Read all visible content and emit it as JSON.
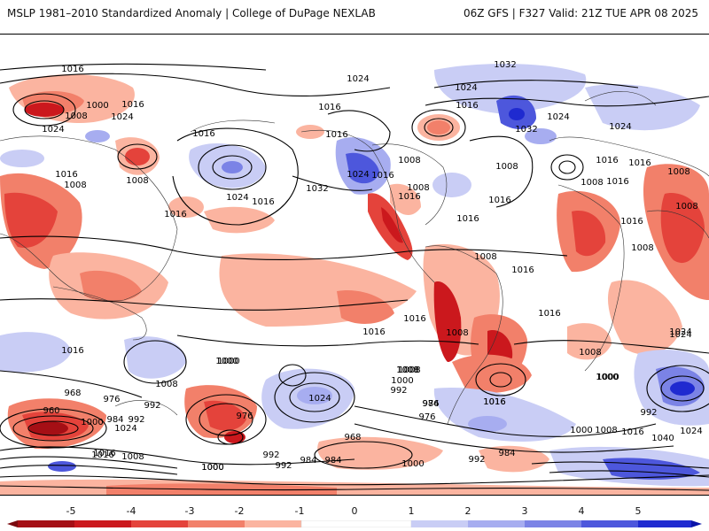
{
  "header": {
    "left_title": "MSLP 1981–2010 Standardized Anomaly | College of DuPage NEXLAB",
    "right_title": "06Z GFS | F327 Valid: 21Z TUE APR 08 2025"
  },
  "colors": {
    "neg_strong": "#a50f15",
    "neg_2": "#cb181d",
    "neg_3": "#e4433b",
    "neg_4": "#f2806a",
    "neg_weak": "#fbb4a0",
    "pos_weak": "#c9cdf5",
    "pos_2": "#a7adf0",
    "pos_3": "#7b83e6",
    "pos_4": "#4d57dc",
    "pos_strong": "#1f2ad0",
    "contour": "#000000"
  },
  "colorbar": {
    "tick_labels": [
      "-5",
      "-4",
      "-3",
      "-2",
      "-1",
      "0",
      "1",
      "2",
      "3",
      "4",
      "5"
    ],
    "range": [
      -5,
      5
    ]
  },
  "contour_labels": [
    "1016",
    "1000",
    "1016",
    "1024",
    "1008",
    "1024",
    "1016",
    "1008",
    "1016",
    "1016",
    "1008",
    "1016",
    "1024",
    "1016",
    "1016",
    "1024",
    "1032",
    "1008",
    "1016",
    "1016",
    "1024",
    "1032",
    "1024",
    "1016",
    "1024",
    "1032",
    "1008",
    "1008",
    "1016",
    "1016",
    "1008",
    "1016",
    "1016",
    "1016",
    "1008",
    "1008",
    "1016",
    "1008",
    "1008",
    "1016",
    "1024",
    "1024",
    "1016",
    "1016",
    "1000",
    "1008",
    "1024",
    "1016",
    "1008",
    "984",
    "1008",
    "1024",
    "1016",
    "1000",
    "1008",
    "1000",
    "992",
    "976",
    "1008",
    "1000",
    "1016",
    "968",
    "976",
    "960",
    "984",
    "992",
    "992",
    "976",
    "1000",
    "1024",
    "1016",
    "1008",
    "1000",
    "992",
    "984",
    "984",
    "968",
    "992",
    "1000",
    "1000",
    "1008",
    "1016",
    "1040",
    "1024",
    "1000",
    "992",
    "984",
    "976",
    "1016",
    "1008",
    "992",
    "1000",
    "1016"
  ]
}
